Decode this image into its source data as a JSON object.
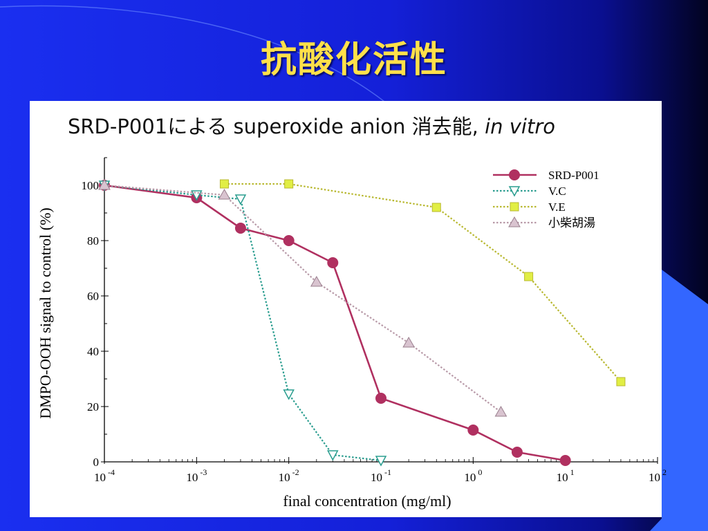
{
  "slide": {
    "title": "抗酸化活性",
    "colors": {
      "background": "#1a2ff0",
      "title": "#ffe04a",
      "accent": "#3366ff"
    }
  },
  "figure": {
    "caption_main": "SRD-P001による superoxide anion 消去能, ",
    "caption_italic": "in vitro"
  },
  "chart_data": {
    "type": "line",
    "xlabel": "final concentration (mg/ml)",
    "ylabel": "DMPO-OOH signal to control (%)",
    "x_scale": "log",
    "xlim": [
      0.0001,
      100
    ],
    "ylim": [
      0,
      110
    ],
    "x_ticks": [
      {
        "base": "10",
        "exp": "-4"
      },
      {
        "base": "10",
        "exp": "-3"
      },
      {
        "base": "10",
        "exp": "-2"
      },
      {
        "base": "10",
        "exp": "-1"
      },
      {
        "base": "10",
        "exp": "0"
      },
      {
        "base": "10",
        "exp": "1"
      },
      {
        "base": "10",
        "exp": "2"
      }
    ],
    "y_ticks": [
      "0",
      "20",
      "40",
      "60",
      "80",
      "100"
    ],
    "grid": false,
    "legend_position": "top-right",
    "series": [
      {
        "name": "SRD-P001",
        "color": "#b03060",
        "marker": "circle",
        "line": "solid",
        "x": [
          0.0001,
          0.001,
          0.003,
          0.01,
          0.03,
          0.1,
          1,
          3,
          10
        ],
        "y": [
          100,
          95.5,
          84.5,
          80,
          72,
          23,
          11.5,
          3.5,
          0.5
        ]
      },
      {
        "name": "V.C",
        "color": "#2a9d8f",
        "marker": "triangle-down",
        "line": "dotted",
        "x": [
          0.0001,
          0.001,
          0.003,
          0.01,
          0.03,
          0.1
        ],
        "y": [
          100,
          96.5,
          95,
          24.5,
          2.5,
          0.5
        ]
      },
      {
        "name": "V.E",
        "color": "#b8b830",
        "marker": "square",
        "line": "dotted",
        "x": [
          0.002,
          0.01,
          0.4,
          4,
          40
        ],
        "y": [
          100.5,
          100.5,
          92,
          67,
          29
        ]
      },
      {
        "name": "小柴胡湯",
        "color": "#b89aa8",
        "marker": "triangle-up",
        "line": "dotted",
        "x": [
          0.0001,
          0.002,
          0.02,
          0.2,
          2
        ],
        "y": [
          100,
          96.5,
          65,
          43,
          18
        ]
      }
    ]
  }
}
